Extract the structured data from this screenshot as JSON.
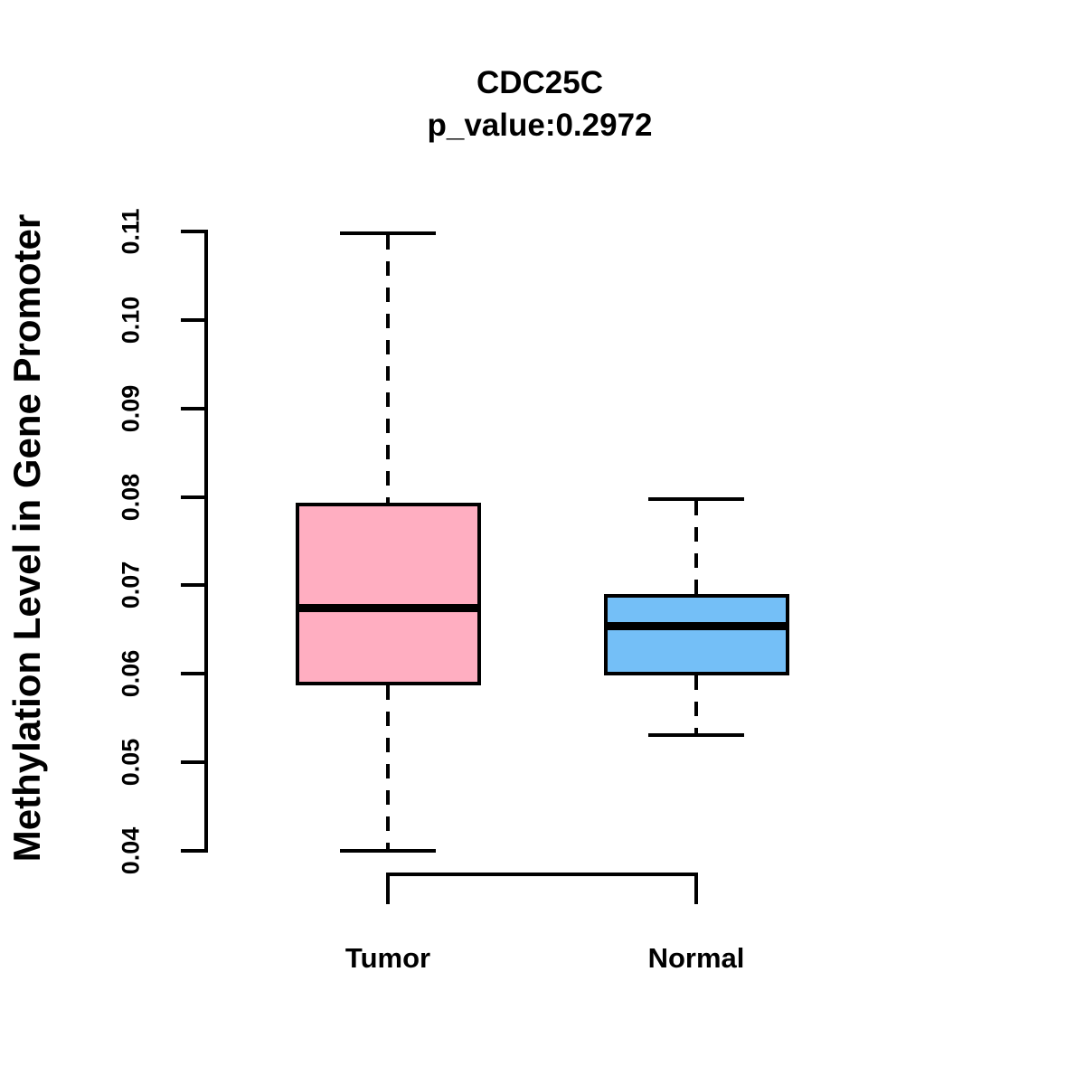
{
  "chart_data": {
    "type": "boxplot",
    "title": "CDC25C",
    "subtitle": "p_value:0.2972",
    "ylabel": "Methylation Level in Gene Promoter",
    "xlabel": "",
    "ylim": [
      0.04,
      0.11
    ],
    "y_ticks": [
      0.04,
      0.05,
      0.06,
      0.07,
      0.08,
      0.09,
      0.1,
      0.11
    ],
    "grid": "off",
    "legend": "none",
    "categories": [
      "Tumor",
      "Normal"
    ],
    "series": [
      {
        "name": "Tumor",
        "fill_color": "#FFAEC1",
        "stroke_color": "#000000",
        "whisker_low": 0.04,
        "q1": 0.0587,
        "median": 0.0674,
        "q3": 0.0793,
        "whisker_high": 0.1098
      },
      {
        "name": "Normal",
        "fill_color": "#74BFF7",
        "stroke_color": "#000000",
        "whisker_low": 0.0531,
        "q1": 0.0598,
        "median": 0.0654,
        "q3": 0.069,
        "whisker_high": 0.0798
      }
    ]
  }
}
